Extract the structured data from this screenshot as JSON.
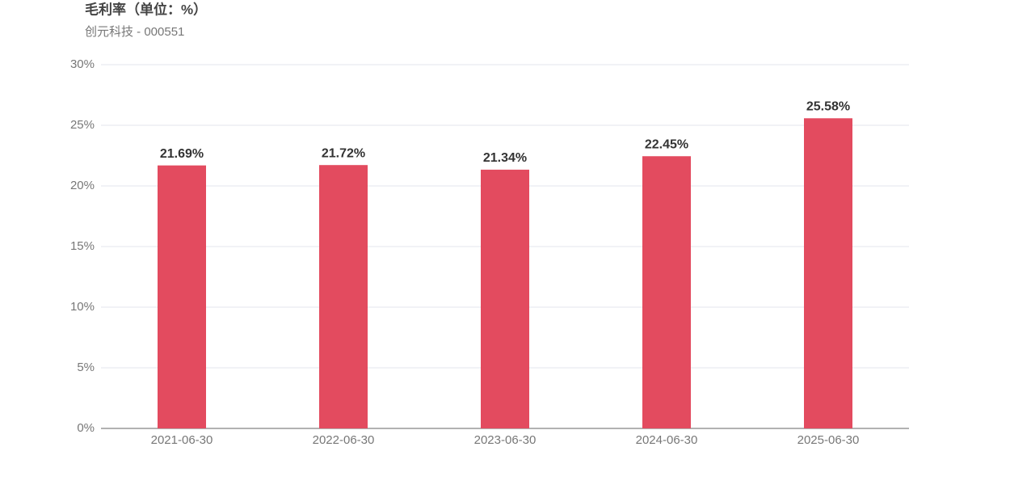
{
  "chart_data": {
    "type": "bar",
    "title": "毛利率（单位：%）",
    "subtitle": "创元科技 - 000551",
    "categories": [
      "2021-06-30",
      "2022-06-30",
      "2023-06-30",
      "2024-06-30",
      "2025-06-30"
    ],
    "values": [
      21.69,
      21.72,
      21.34,
      22.45,
      25.58
    ],
    "value_labels": [
      "21.69%",
      "21.72%",
      "21.34%",
      "22.45%",
      "25.58%"
    ],
    "color": "#e34b5f",
    "ylim": [
      0,
      30
    ],
    "yticks": [
      {
        "value": 0,
        "label": "0%"
      },
      {
        "value": 5,
        "label": "5%"
      },
      {
        "value": 10,
        "label": "10%"
      },
      {
        "value": 15,
        "label": "15%"
      },
      {
        "value": 20,
        "label": "20%"
      },
      {
        "value": 25,
        "label": "25%"
      },
      {
        "value": 30,
        "label": "30%"
      }
    ],
    "grid": true
  }
}
